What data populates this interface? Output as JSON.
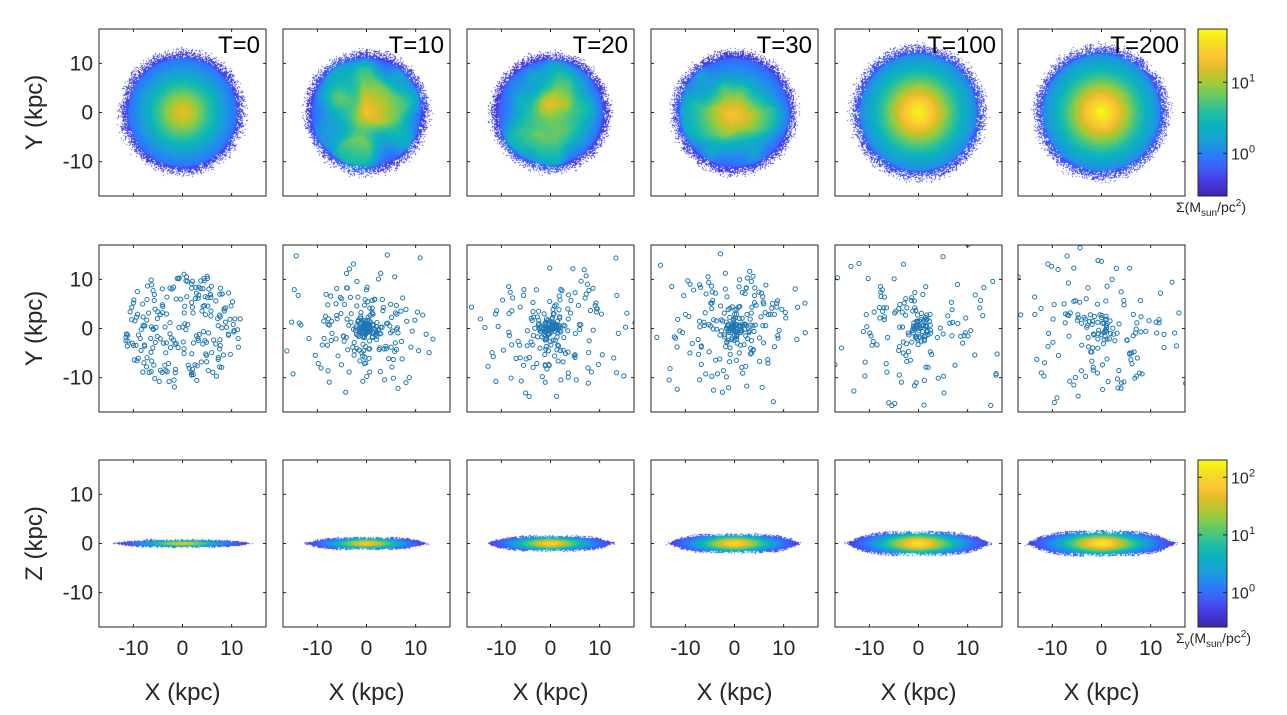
{
  "chart_data": {
    "type": "scatter",
    "panel_titles": [
      "T=0",
      "T=10",
      "T=20",
      "T=30",
      "T=100",
      "T=200"
    ],
    "x_range": [
      -17,
      17
    ],
    "y_range": [
      -17,
      17
    ],
    "x_ticks": [
      -10,
      0,
      10
    ],
    "y_ticks": [
      -10,
      0,
      10
    ],
    "x_tick_labels": [
      "-10",
      "0",
      "10"
    ],
    "y_tick_labels": [
      "-10",
      "0",
      "10"
    ],
    "xlabel": "X (kpc)",
    "row_ylabels": [
      "Y (kpc)",
      "Y (kpc)",
      "Z (kpc)"
    ],
    "rows": [
      {
        "kind": "density_faceon",
        "radius_kpc": [
          13,
          13,
          12.5,
          13,
          14,
          14
        ],
        "clumpiness": [
          0,
          0.9,
          0.7,
          0.5,
          0,
          0
        ],
        "core_intensity": [
          0.78,
          0.72,
          0.75,
          0.82,
          0.97,
          0.98
        ]
      },
      {
        "kind": "particles",
        "counts": [
          220,
          240,
          220,
          230,
          180,
          170
        ],
        "spread_kpc": [
          7.5,
          8,
          8.5,
          9,
          11,
          11.5
        ]
      },
      {
        "kind": "density_edgeon",
        "half_length_kpc": [
          14,
          12.5,
          13,
          13.5,
          14.5,
          15
        ],
        "half_thickness_kpc": [
          0.8,
          1.3,
          1.6,
          2,
          2.5,
          2.6
        ],
        "core_intensity": [
          0.8,
          0.85,
          0.88,
          0.9,
          0.93,
          0.95
        ]
      }
    ],
    "colorbars": [
      {
        "row": 0,
        "range_log10": [
          -0.6,
          1.75
        ],
        "tick_values": [
          1,
          10
        ],
        "tick_bases": [
          "10",
          "10"
        ],
        "tick_exponents": [
          "0",
          "1"
        ],
        "label_prefix": "Σ(M",
        "label_sub": "sun",
        "label_suffix": "/pc",
        "label_sup": "2",
        "label_close": ")"
      },
      {
        "row": 2,
        "range_log10": [
          -0.6,
          2.3
        ],
        "tick_values": [
          1,
          10,
          100
        ],
        "tick_bases": [
          "10",
          "10",
          "10"
        ],
        "tick_exponents": [
          "0",
          "1",
          "2"
        ],
        "label_prefix": "Σ",
        "label_prefix_sub": "y",
        "label_mid": "(M",
        "label_sub": "sun",
        "label_suffix": "/pc",
        "label_sup": "2",
        "label_close": ")"
      }
    ],
    "colormap": [
      "#3e26a8",
      "#4538e0",
      "#3f5ef9",
      "#2681f8",
      "#1a9fd6",
      "#0ab2c0",
      "#26bfa0",
      "#5cc86e",
      "#9ccb3c",
      "#d6be26",
      "#fcc337",
      "#f6dd22",
      "#f9fb15"
    ],
    "marker_color": "#1f77b4"
  }
}
